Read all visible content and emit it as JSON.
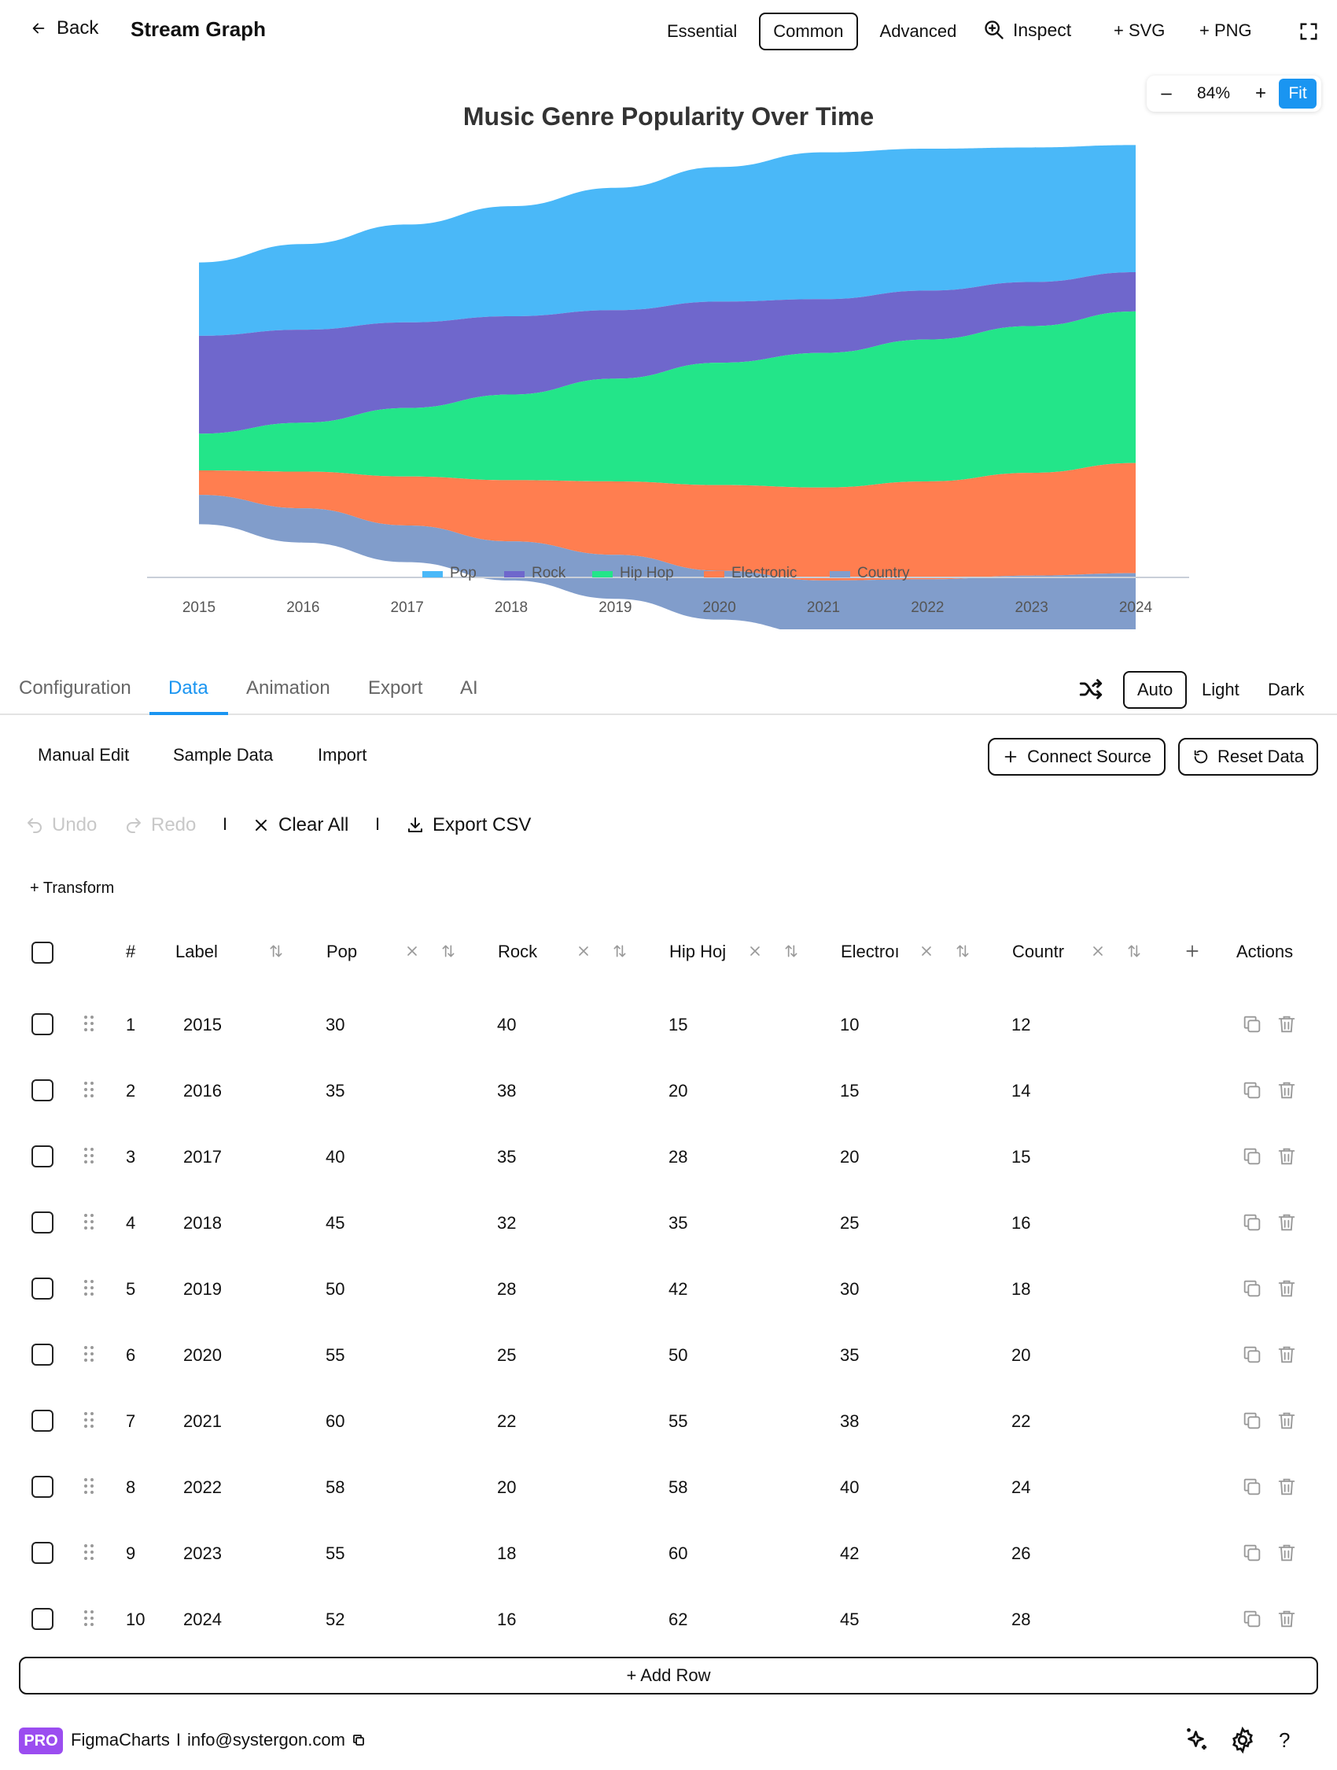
{
  "header": {
    "back_label": "Back",
    "title": "Stream Graph",
    "modes": [
      "Essential",
      "Common",
      "Advanced"
    ],
    "active_mode": "Common",
    "inspect_label": "Inspect",
    "svg_label": "+ SVG",
    "png_label": "+ PNG"
  },
  "zoom": {
    "minus": "–",
    "value": "84%",
    "plus": "+",
    "fit_label": "Fit"
  },
  "chart_data": {
    "type": "area",
    "subtype": "stream",
    "title": "Music Genre Popularity Over Time",
    "categories": [
      "2015",
      "2016",
      "2017",
      "2018",
      "2019",
      "2020",
      "2021",
      "2022",
      "2023",
      "2024"
    ],
    "series": [
      {
        "name": "Pop",
        "color": "#4ab8f8",
        "values": [
          30,
          35,
          40,
          45,
          50,
          55,
          60,
          58,
          55,
          52
        ]
      },
      {
        "name": "Rock",
        "color": "#6f67cc",
        "values": [
          40,
          38,
          35,
          32,
          28,
          25,
          22,
          20,
          18,
          16
        ]
      },
      {
        "name": "Hip Hop",
        "color": "#23e589",
        "values": [
          15,
          20,
          28,
          35,
          42,
          50,
          55,
          58,
          60,
          62
        ]
      },
      {
        "name": "Electronic",
        "color": "#ff7e50",
        "values": [
          10,
          15,
          20,
          25,
          30,
          35,
          38,
          40,
          42,
          45
        ]
      },
      {
        "name": "Country",
        "color": "#819dcb",
        "values": [
          12,
          14,
          15,
          16,
          18,
          20,
          22,
          24,
          26,
          28
        ]
      }
    ],
    "legend_position": "bottom"
  },
  "tabs": {
    "items": [
      "Configuration",
      "Data",
      "Animation",
      "Export",
      "AI"
    ],
    "active": "Data",
    "themes": [
      "Auto",
      "Light",
      "Dark"
    ],
    "active_theme": "Auto"
  },
  "subtabs": {
    "items": [
      "Manual Edit",
      "Sample Data",
      "Import"
    ],
    "connect_label": "Connect Source",
    "reset_label": "Reset Data"
  },
  "toolbar": {
    "undo_label": "Undo",
    "redo_label": "Redo",
    "sep": "I",
    "clear_label": "Clear All",
    "export_label": "Export CSV",
    "transform_label": "+ Transform"
  },
  "table": {
    "headers": {
      "num": "#",
      "label": "Label",
      "pop": "Pop",
      "rock": "Rock",
      "hiphop": "Hip Hoj",
      "electronic": "Electroı",
      "country": "Countr",
      "actions": "Actions"
    },
    "rows": [
      {
        "num": "1",
        "label": "2015",
        "pop": "30",
        "rock": "40",
        "hiphop": "15",
        "electronic": "10",
        "country": "12"
      },
      {
        "num": "2",
        "label": "2016",
        "pop": "35",
        "rock": "38",
        "hiphop": "20",
        "electronic": "15",
        "country": "14"
      },
      {
        "num": "3",
        "label": "2017",
        "pop": "40",
        "rock": "35",
        "hiphop": "28",
        "electronic": "20",
        "country": "15"
      },
      {
        "num": "4",
        "label": "2018",
        "pop": "45",
        "rock": "32",
        "hiphop": "35",
        "electronic": "25",
        "country": "16"
      },
      {
        "num": "5",
        "label": "2019",
        "pop": "50",
        "rock": "28",
        "hiphop": "42",
        "electronic": "30",
        "country": "18"
      },
      {
        "num": "6",
        "label": "2020",
        "pop": "55",
        "rock": "25",
        "hiphop": "50",
        "electronic": "35",
        "country": "20"
      },
      {
        "num": "7",
        "label": "2021",
        "pop": "60",
        "rock": "22",
        "hiphop": "55",
        "electronic": "38",
        "country": "22"
      },
      {
        "num": "8",
        "label": "2022",
        "pop": "58",
        "rock": "20",
        "hiphop": "58",
        "electronic": "40",
        "country": "24"
      },
      {
        "num": "9",
        "label": "2023",
        "pop": "55",
        "rock": "18",
        "hiphop": "60",
        "electronic": "42",
        "country": "26"
      },
      {
        "num": "10",
        "label": "2024",
        "pop": "52",
        "rock": "16",
        "hiphop": "62",
        "electronic": "45",
        "country": "28"
      }
    ],
    "add_row_label": "+ Add Row"
  },
  "footer": {
    "badge": "PRO",
    "brand": "FigmaCharts",
    "sep": "I",
    "email": "info@systergon.com",
    "help": "?"
  }
}
